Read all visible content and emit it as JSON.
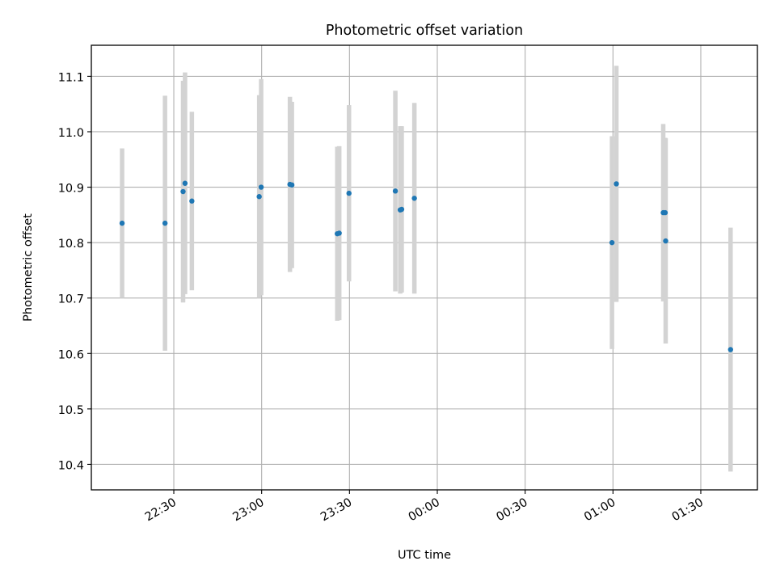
{
  "chart_data": {
    "type": "scatter",
    "title": "Photometric offset variation",
    "xlabel": "UTC time",
    "ylabel": "Photometric offset",
    "x_tick_labels": [
      "22:30",
      "23:00",
      "23:30",
      "00:00",
      "00:30",
      "01:00",
      "01:30"
    ],
    "x_ticks_minutes": [
      1350,
      1380,
      1410,
      1440,
      1470,
      1500,
      1530
    ],
    "y_ticks": [
      10.4,
      10.5,
      10.6,
      10.7,
      10.8,
      10.9,
      11.0,
      11.1
    ],
    "y_tick_labels": [
      "10.4",
      "10.5",
      "10.6",
      "10.7",
      "10.8",
      "10.9",
      "11.0",
      "11.1"
    ],
    "xlim": [
      "22:01:50",
      "01:49:20"
    ],
    "ylim": [
      10.354,
      11.156
    ],
    "grid": true,
    "colors": {
      "point": "#1f77b4",
      "errorbar": "#d3d3d3",
      "grid": "#b0b0b0",
      "axes": "#000000"
    },
    "series": [
      {
        "points": [
          {
            "x": "22:12:20",
            "y": 10.835,
            "err": 0.135
          },
          {
            "x": "22:27:00",
            "y": 10.835,
            "err": 0.23
          },
          {
            "x": "22:33:10",
            "y": 10.892,
            "err": 0.2
          },
          {
            "x": "22:33:50",
            "y": 10.907,
            "err": 0.2
          },
          {
            "x": "22:36:10",
            "y": 10.875,
            "err": 0.161
          },
          {
            "x": "22:59:10",
            "y": 10.883,
            "err": 0.183
          },
          {
            "x": "22:59:50",
            "y": 10.9,
            "err": 0.195
          },
          {
            "x": "23:09:40",
            "y": 10.905,
            "err": 0.158
          },
          {
            "x": "23:10:20",
            "y": 10.904,
            "err": 0.15
          },
          {
            "x": "23:25:50",
            "y": 10.816,
            "err": 0.157
          },
          {
            "x": "23:26:30",
            "y": 10.817,
            "err": 0.157
          },
          {
            "x": "23:29:50",
            "y": 10.889,
            "err": 0.159
          },
          {
            "x": "23:45:40",
            "y": 10.893,
            "err": 0.181
          },
          {
            "x": "23:47:20",
            "y": 10.859,
            "err": 0.151
          },
          {
            "x": "23:47:50",
            "y": 10.86,
            "err": 0.15
          },
          {
            "x": "23:52:10",
            "y": 10.88,
            "err": 0.172
          },
          {
            "x": "00:59:40",
            "y": 10.8,
            "err": 0.192
          },
          {
            "x": "01:01:10",
            "y": 10.906,
            "err": 0.213
          },
          {
            "x": "01:17:10",
            "y": 10.854,
            "err": 0.16
          },
          {
            "x": "01:17:50",
            "y": 10.854,
            "err": 0.135
          },
          {
            "x": "01:18:00",
            "y": 10.803,
            "err": 0.185
          },
          {
            "x": "01:40:10",
            "y": 10.607,
            "err": 0.22
          }
        ]
      }
    ]
  }
}
